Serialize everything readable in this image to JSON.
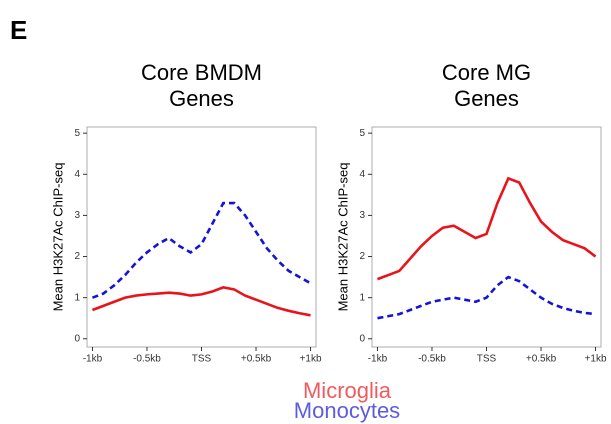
{
  "panel_label": "E",
  "chart_data": [
    {
      "type": "line",
      "title": "Core BMDM Genes",
      "y_label": "Mean H3K27Ac ChIP-seq",
      "x": [
        -1,
        -0.9,
        -0.8,
        -0.7,
        -0.6,
        -0.5,
        -0.4,
        -0.3,
        -0.2,
        -0.1,
        0,
        0.1,
        0.2,
        0.3,
        0.4,
        0.5,
        0.6,
        0.7,
        0.8,
        0.9,
        1
      ],
      "xlim": [
        -1.05,
        1.05
      ],
      "xticks": [
        {
          "value": -1,
          "label": "-1kb"
        },
        {
          "value": -0.5,
          "label": "-0.5kb"
        },
        {
          "value": 0,
          "label": "TSS"
        },
        {
          "value": 0.5,
          "label": "+0.5kb"
        },
        {
          "value": 1,
          "label": "+1kb"
        }
      ],
      "ylim": [
        -0.2,
        5.15
      ],
      "yticks": [
        0,
        1,
        2,
        3,
        4,
        5
      ],
      "series": [
        {
          "name": "Microglia",
          "color": "#e8141b",
          "line_style": "solid",
          "values": [
            0.7,
            0.8,
            0.9,
            1.0,
            1.05,
            1.08,
            1.1,
            1.12,
            1.1,
            1.05,
            1.08,
            1.15,
            1.25,
            1.2,
            1.05,
            0.95,
            0.85,
            0.75,
            0.68,
            0.62,
            0.57
          ]
        },
        {
          "name": "Monocytes",
          "color": "#1414d8",
          "line_style": "dashed",
          "values": [
            1.0,
            1.1,
            1.3,
            1.55,
            1.85,
            2.1,
            2.3,
            2.45,
            2.25,
            2.1,
            2.3,
            2.8,
            3.3,
            3.3,
            3.0,
            2.6,
            2.2,
            1.9,
            1.65,
            1.5,
            1.35
          ]
        }
      ]
    },
    {
      "type": "line",
      "title": "Core MG Genes",
      "y_label": "Mean H3K27Ac ChIP-seq",
      "x": [
        -1,
        -0.9,
        -0.8,
        -0.7,
        -0.6,
        -0.5,
        -0.4,
        -0.3,
        -0.2,
        -0.1,
        0,
        0.1,
        0.2,
        0.3,
        0.4,
        0.5,
        0.6,
        0.7,
        0.8,
        0.9,
        1
      ],
      "xlim": [
        -1.05,
        1.05
      ],
      "xticks": [
        {
          "value": -1,
          "label": "-1kb"
        },
        {
          "value": -0.5,
          "label": "-0.5kb"
        },
        {
          "value": 0,
          "label": "TSS"
        },
        {
          "value": 0.5,
          "label": "+0.5kb"
        },
        {
          "value": 1,
          "label": "+1kb"
        }
      ],
      "ylim": [
        -0.2,
        5.15
      ],
      "yticks": [
        0,
        1,
        2,
        3,
        4,
        5
      ],
      "series": [
        {
          "name": "Microglia",
          "color": "#e8141b",
          "line_style": "solid",
          "values": [
            1.45,
            1.55,
            1.65,
            1.95,
            2.25,
            2.5,
            2.7,
            2.75,
            2.6,
            2.45,
            2.55,
            3.3,
            3.9,
            3.8,
            3.3,
            2.85,
            2.6,
            2.4,
            2.3,
            2.2,
            2.0
          ]
        },
        {
          "name": "Monocytes",
          "color": "#1414d8",
          "line_style": "dashed",
          "values": [
            0.5,
            0.55,
            0.6,
            0.7,
            0.8,
            0.9,
            0.95,
            1.0,
            0.95,
            0.9,
            1.0,
            1.3,
            1.5,
            1.4,
            1.2,
            1.0,
            0.85,
            0.75,
            0.68,
            0.63,
            0.6
          ]
        }
      ]
    }
  ]
}
